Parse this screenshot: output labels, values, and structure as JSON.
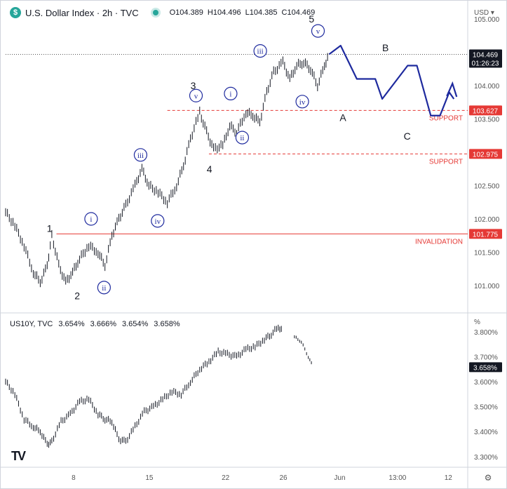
{
  "header": {
    "symbol_icon": "dollar-sign-icon",
    "title": "U.S. Dollar Index · 2h · TVC",
    "open": "O104.389",
    "high": "H104.496",
    "low": "L104.385",
    "close": "C104.469"
  },
  "lower_header": {
    "symbol": "US10Y, TVC",
    "v1": "3.654%",
    "v2": "3.666%",
    "v3": "3.654%",
    "v4": "3.658%"
  },
  "colors": {
    "up": "#131722",
    "wave": "#1e2a9e",
    "red": "#e53935",
    "price_tag": "#131722",
    "text": "#131722",
    "axis_text": "#555555"
  },
  "chart_data": [
    {
      "type": "line",
      "name_printed": "U.S. Dollar Index",
      "currency": "USD",
      "y_ticks": [
        "105.000",
        "104.000",
        "103.500",
        "102.500",
        "102.000",
        "101.500",
        "101.000"
      ],
      "y_ticks_values": [
        105.0,
        104.0,
        103.5,
        102.5,
        102.0,
        101.5,
        101.0
      ],
      "ylim": [
        100.6,
        105.2
      ],
      "price_tags": [
        {
          "value": 104.469,
          "label": "104.469",
          "sub": "01:26:23",
          "style": "current"
        },
        {
          "value": 103.627,
          "label": "103.627",
          "style": "level"
        },
        {
          "value": 102.975,
          "label": "102.975",
          "style": "level"
        },
        {
          "value": 101.775,
          "label": "101.775",
          "style": "level"
        }
      ],
      "levels": [
        {
          "value": 103.627,
          "label": "SUPPORT",
          "dashed": true,
          "x_start": 0.35
        },
        {
          "value": 102.975,
          "label": "SUPPORT",
          "dashed": true,
          "x_start": 0.44
        },
        {
          "value": 101.775,
          "label": "INVALIDATION",
          "dashed": false,
          "x_start": 0.11
        }
      ],
      "x_ticks": [
        "8",
        "15",
        "22",
        "26",
        "Jun",
        "13:00",
        "12"
      ],
      "x_ticks_pos": [
        0.147,
        0.311,
        0.476,
        0.601,
        0.723,
        0.848,
        0.958
      ],
      "series_x": [
        0.0,
        0.02,
        0.04,
        0.06,
        0.075,
        0.09,
        0.1,
        0.115,
        0.13,
        0.145,
        0.16,
        0.18,
        0.2,
        0.215,
        0.23,
        0.245,
        0.26,
        0.28,
        0.295,
        0.31,
        0.33,
        0.35,
        0.37,
        0.385,
        0.4,
        0.42,
        0.435,
        0.45,
        0.47,
        0.485,
        0.5,
        0.52,
        0.535,
        0.55,
        0.565,
        0.58,
        0.6,
        0.615,
        0.63,
        0.645,
        0.66,
        0.675,
        0.69,
        0.7
      ],
      "series_y": [
        102.1,
        101.9,
        101.6,
        101.2,
        101.05,
        101.3,
        101.75,
        101.3,
        101.05,
        101.2,
        101.4,
        101.6,
        101.5,
        101.3,
        101.75,
        102.0,
        102.2,
        102.5,
        102.75,
        102.5,
        102.4,
        102.25,
        102.5,
        102.8,
        103.2,
        103.6,
        103.3,
        103.05,
        103.1,
        103.4,
        103.3,
        103.6,
        103.55,
        103.45,
        103.9,
        104.2,
        104.35,
        104.1,
        104.3,
        104.35,
        104.25,
        104.0,
        104.3,
        104.47
      ],
      "projection_x": [
        0.7,
        0.725,
        0.76,
        0.8,
        0.815,
        0.87,
        0.89,
        0.92,
        0.94,
        0.96,
        0.97
      ],
      "projection_y": [
        104.47,
        104.6,
        104.1,
        104.1,
        103.8,
        104.3,
        104.3,
        103.55,
        103.55,
        103.9,
        103.8
      ],
      "wave_labels": [
        {
          "text": "1",
          "x": 0.095,
          "y": 101.86,
          "circle": false
        },
        {
          "text": "2",
          "x": 0.155,
          "y": 100.85,
          "circle": false
        },
        {
          "text": "i",
          "x": 0.185,
          "y": 102.0,
          "circle": true
        },
        {
          "text": "ii",
          "x": 0.213,
          "y": 100.97,
          "circle": true
        },
        {
          "text": "iii",
          "x": 0.292,
          "y": 102.96,
          "circle": true
        },
        {
          "text": "iv",
          "x": 0.329,
          "y": 101.97,
          "circle": true
        },
        {
          "text": "3",
          "x": 0.406,
          "y": 104.0,
          "circle": false
        },
        {
          "text": "v",
          "x": 0.412,
          "y": 103.85,
          "circle": true
        },
        {
          "text": "4",
          "x": 0.441,
          "y": 102.75,
          "circle": false
        },
        {
          "text": "i",
          "x": 0.487,
          "y": 103.88,
          "circle": true
        },
        {
          "text": "ii",
          "x": 0.512,
          "y": 103.22,
          "circle": true
        },
        {
          "text": "iii",
          "x": 0.551,
          "y": 104.52,
          "circle": true
        },
        {
          "text": "iv",
          "x": 0.642,
          "y": 103.76,
          "circle": true
        },
        {
          "text": "5",
          "x": 0.662,
          "y": 105.0,
          "circle": false
        },
        {
          "text": "v",
          "x": 0.676,
          "y": 104.82,
          "circle": true
        },
        {
          "text": "A",
          "x": 0.73,
          "y": 103.52,
          "circle": false
        },
        {
          "text": "B",
          "x": 0.822,
          "y": 104.57,
          "circle": false
        },
        {
          "text": "C",
          "x": 0.869,
          "y": 103.24,
          "circle": false
        }
      ]
    },
    {
      "type": "line",
      "name_printed": "US10Y",
      "unit": "%",
      "y_ticks": [
        "3.800%",
        "3.700%",
        "3.600%",
        "3.500%",
        "3.400%",
        "3.300%"
      ],
      "y_ticks_values": [
        3.8,
        3.7,
        3.6,
        3.5,
        3.4,
        3.3
      ],
      "ylim": [
        3.26,
        3.87
      ],
      "price_tags": [
        {
          "value": 3.658,
          "label": "3.658%",
          "style": "current"
        }
      ],
      "series_x": [
        0.0,
        0.02,
        0.04,
        0.06,
        0.075,
        0.09,
        0.1,
        0.12,
        0.14,
        0.16,
        0.18,
        0.2,
        0.215,
        0.23,
        0.245,
        0.26,
        0.28,
        0.3,
        0.32,
        0.34,
        0.36,
        0.38,
        0.4,
        0.42,
        0.44,
        0.46,
        0.48,
        0.5,
        0.52,
        0.54,
        0.56,
        0.575,
        0.59,
        0.6
      ],
      "series_y": [
        3.6,
        3.55,
        3.45,
        3.42,
        3.4,
        3.35,
        3.36,
        3.44,
        3.47,
        3.52,
        3.53,
        3.47,
        3.45,
        3.44,
        3.37,
        3.36,
        3.42,
        3.48,
        3.5,
        3.53,
        3.56,
        3.55,
        3.6,
        3.65,
        3.68,
        3.72,
        3.71,
        3.7,
        3.73,
        3.74,
        3.77,
        3.79,
        3.82,
        3.8
      ],
      "series2_x": [
        0.625,
        0.64,
        0.655,
        0.665
      ],
      "series2_y": [
        3.78,
        3.76,
        3.7,
        3.66
      ]
    }
  ],
  "toolbar": {
    "logo": "TV",
    "settings_icon": "gear-icon",
    "logo_icon": "tradingview-logo-icon"
  }
}
